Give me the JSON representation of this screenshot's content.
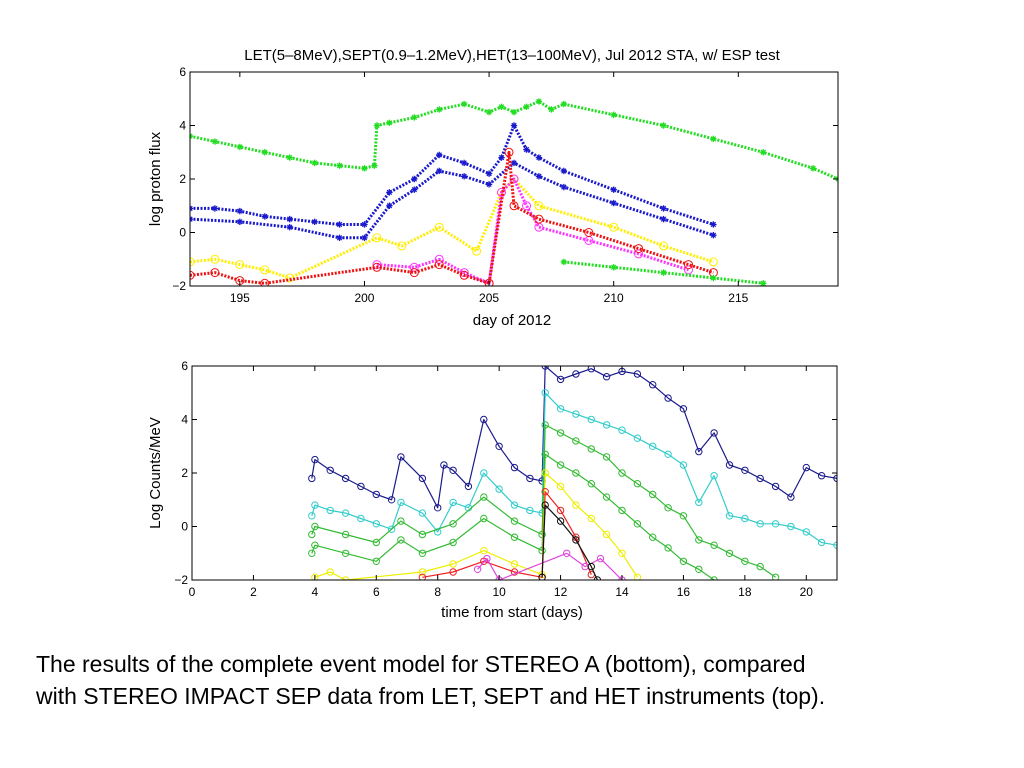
{
  "caption": {
    "line1": "The results of the complete event model for STEREO A (bottom), compared",
    "line2": "with STEREO IMPACT SEP data from LET, SEPT and HET instruments (top)."
  },
  "chart_data": [
    {
      "type": "scatter",
      "title": "LET(5–8MeV),SEPT(0.9–1.2MeV),HET(13–100MeV), Jul 2012 STA, w/ ESP test",
      "xlabel": "day of 2012",
      "ylabel": "log proton flux",
      "xlim": [
        193,
        219
      ],
      "ylim": [
        -2,
        6
      ],
      "xticks": [
        195,
        200,
        205,
        210,
        215
      ],
      "xtick_labels": [
        "195",
        "200",
        "205",
        "210",
        "215"
      ],
      "yticks": [
        -2,
        0,
        2,
        4,
        6
      ],
      "ytick_labels": [
        "−2",
        "0",
        "2",
        "4",
        "6"
      ],
      "grid": false,
      "series": [
        {
          "color": "#22dd22",
          "marker": "star",
          "x": [
            193.0,
            194.0,
            195.0,
            196.0,
            197.0,
            198.0,
            199.0,
            200.0,
            200.4,
            200.5,
            201.0,
            202.0,
            203.0,
            204.0,
            205.0,
            205.5,
            206.0,
            206.5,
            207.0,
            207.5,
            208.0,
            210.0,
            212.0,
            214.0,
            216.0,
            218.0,
            219.0
          ],
          "y": [
            3.6,
            3.4,
            3.2,
            3.0,
            2.8,
            2.6,
            2.5,
            2.4,
            2.5,
            4.0,
            4.1,
            4.3,
            4.6,
            4.8,
            4.5,
            4.7,
            4.5,
            4.7,
            4.9,
            4.6,
            4.8,
            4.4,
            4.0,
            3.5,
            3.0,
            2.4,
            2.0
          ]
        },
        {
          "color": "#1a1acc",
          "marker": "star",
          "x": [
            193.0,
            194.0,
            195.0,
            196.0,
            197.0,
            198.0,
            199.0,
            200.0,
            201.0,
            202.0,
            203.0,
            204.0,
            205.0,
            205.5,
            206.0,
            206.5,
            207.0,
            208.0,
            210.0,
            212.0,
            214.0
          ],
          "y": [
            0.9,
            0.9,
            0.8,
            0.6,
            0.5,
            0.4,
            0.3,
            0.3,
            1.5,
            2.0,
            2.9,
            2.6,
            2.2,
            2.8,
            4.0,
            3.1,
            2.8,
            2.3,
            1.6,
            0.9,
            0.3
          ]
        },
        {
          "color": "#1a1acc",
          "marker": "star",
          "x": [
            193.0,
            195.0,
            197.0,
            199.0,
            200.0,
            201.0,
            202.0,
            203.0,
            204.0,
            205.0,
            206.0,
            207.0,
            208.0,
            210.0,
            212.0,
            214.0
          ],
          "y": [
            0.5,
            0.4,
            0.2,
            -0.2,
            -0.2,
            1.0,
            1.6,
            2.3,
            2.1,
            1.8,
            2.6,
            2.1,
            1.7,
            1.1,
            0.5,
            -0.1
          ]
        },
        {
          "color": "#ffee00",
          "marker": "circle",
          "x": [
            193.0,
            194.0,
            195.0,
            196.0,
            197.0,
            200.5,
            201.5,
            203.0,
            204.5,
            205.5,
            206.0,
            207.0,
            210.0,
            212.0,
            214.0
          ],
          "y": [
            -1.1,
            -1.0,
            -1.2,
            -1.4,
            -1.7,
            -0.2,
            -0.5,
            0.2,
            -0.7,
            1.5,
            2.0,
            1.0,
            0.2,
            -0.5,
            -1.1
          ]
        },
        {
          "color": "#ff33ff",
          "marker": "circle",
          "x": [
            200.5,
            202.0,
            203.0,
            204.0,
            205.0,
            205.5,
            206.0,
            206.5,
            207.0,
            209.0,
            211.0,
            213.0
          ],
          "y": [
            -1.2,
            -1.3,
            -1.0,
            -1.5,
            -1.9,
            1.5,
            2.0,
            1.0,
            0.2,
            -0.3,
            -0.8,
            -1.4
          ]
        },
        {
          "color": "#ee1111",
          "marker": "circle",
          "x": [
            193.0,
            194.0,
            195.0,
            196.0,
            200.5,
            202.0,
            203.0,
            204.0,
            205.0,
            205.8,
            206.0,
            207.0,
            209.0,
            211.0,
            213.0,
            214.0
          ],
          "y": [
            -1.6,
            -1.5,
            -1.8,
            -1.9,
            -1.3,
            -1.5,
            -1.2,
            -1.6,
            -1.9,
            3.0,
            1.0,
            0.5,
            0.0,
            -0.6,
            -1.2,
            -1.5
          ]
        },
        {
          "color": "#22dd22",
          "marker": "star",
          "x": [
            208.0,
            210.0,
            212.0,
            214.0,
            216.0
          ],
          "y": [
            -1.1,
            -1.3,
            -1.5,
            -1.7,
            -1.9
          ]
        }
      ]
    },
    {
      "type": "line",
      "title": "",
      "xlabel": "time from start (days)",
      "ylabel": "Log Counts/MeV",
      "xlim": [
        0,
        21
      ],
      "ylim": [
        -2,
        6
      ],
      "xticks": [
        0,
        2,
        4,
        6,
        8,
        10,
        12,
        14,
        16,
        18,
        20
      ],
      "xtick_labels": [
        "0",
        "2",
        "4",
        "6",
        "8",
        "10",
        "12",
        "14",
        "16",
        "18",
        "20"
      ],
      "yticks": [
        -2,
        0,
        2,
        4,
        6
      ],
      "ytick_labels": [
        "−2",
        "0",
        "2",
        "4",
        "6"
      ],
      "grid": false,
      "series": [
        {
          "color": "#1a1a8c",
          "x": [
            3.9,
            4.0,
            4.5,
            5.0,
            5.5,
            6.0,
            6.5,
            6.8,
            7.5,
            8.0,
            8.2,
            8.5,
            9.0,
            9.5,
            10.0,
            10.5,
            11.0,
            11.4,
            11.5,
            12.0,
            12.5,
            13.0,
            13.5,
            14.0,
            14.5,
            15.0,
            15.5,
            16.0,
            16.5,
            17.0,
            17.5,
            18.0,
            18.5,
            19.0,
            19.5,
            20.0,
            20.5,
            21.0
          ],
          "y": [
            1.8,
            2.5,
            2.1,
            1.8,
            1.5,
            1.2,
            1.0,
            2.6,
            1.8,
            0.7,
            2.3,
            2.1,
            1.5,
            4.0,
            3.0,
            2.2,
            1.8,
            1.7,
            6.0,
            5.5,
            5.7,
            5.9,
            5.6,
            5.8,
            5.7,
            5.3,
            4.8,
            4.4,
            2.8,
            3.5,
            2.3,
            2.1,
            1.8,
            1.5,
            1.1,
            2.2,
            1.9,
            1.8
          ]
        },
        {
          "color": "#33cccc",
          "x": [
            3.9,
            4.0,
            4.5,
            5.0,
            5.5,
            6.0,
            6.5,
            6.8,
            7.5,
            8.0,
            8.5,
            9.0,
            9.5,
            10.0,
            10.5,
            11.0,
            11.4,
            11.5,
            12.0,
            12.5,
            13.0,
            13.5,
            14.0,
            14.5,
            15.0,
            15.5,
            16.0,
            16.5,
            17.0,
            17.5,
            18.0,
            18.5,
            19.0,
            19.5,
            20.0,
            20.5,
            21.0
          ],
          "y": [
            0.4,
            0.8,
            0.6,
            0.5,
            0.3,
            0.1,
            -0.1,
            0.9,
            0.5,
            -0.2,
            0.9,
            0.7,
            2.0,
            1.4,
            0.8,
            0.6,
            0.5,
            5.0,
            4.4,
            4.2,
            4.0,
            3.8,
            3.6,
            3.3,
            3.0,
            2.7,
            2.3,
            0.9,
            1.9,
            0.4,
            0.3,
            0.1,
            0.1,
            0.0,
            -0.2,
            -0.6,
            -0.7
          ]
        },
        {
          "color": "#33bb33",
          "x": [
            3.9,
            4.0,
            5.0,
            6.0,
            6.8,
            7.5,
            8.5,
            9.5,
            10.5,
            11.4,
            11.5,
            12.0,
            12.5,
            13.0,
            13.5,
            14.0,
            14.5,
            15.0,
            15.5,
            16.0,
            16.5,
            17.0,
            17.5,
            18.0,
            18.5,
            19.0
          ],
          "y": [
            -0.3,
            0.0,
            -0.3,
            -0.6,
            0.2,
            -0.3,
            0.1,
            1.1,
            0.2,
            -0.3,
            3.8,
            3.5,
            3.2,
            2.9,
            2.6,
            2.0,
            1.6,
            1.2,
            0.7,
            0.4,
            -0.5,
            -0.7,
            -1.0,
            -1.3,
            -1.5,
            -1.9
          ]
        },
        {
          "color": "#33bb33",
          "x": [
            3.9,
            4.0,
            5.0,
            6.0,
            6.8,
            7.5,
            8.5,
            9.5,
            10.5,
            11.4,
            11.5,
            12.0,
            12.5,
            13.0,
            13.5,
            14.0,
            14.5,
            15.0,
            15.5,
            16.0,
            16.5,
            17.0
          ],
          "y": [
            -1.0,
            -0.7,
            -1.0,
            -1.3,
            -0.5,
            -1.0,
            -0.6,
            0.3,
            -0.4,
            -0.9,
            2.7,
            2.3,
            2.0,
            1.6,
            1.1,
            0.6,
            0.1,
            -0.4,
            -0.8,
            -1.3,
            -1.6,
            -2.0
          ]
        },
        {
          "color": "#eeee00",
          "x": [
            4.0,
            4.5,
            5.0,
            7.5,
            8.5,
            9.5,
            10.5,
            11.4,
            11.5,
            12.0,
            12.5,
            13.0,
            13.5,
            14.0,
            14.5
          ],
          "y": [
            -1.9,
            -1.7,
            -2.0,
            -1.7,
            -1.4,
            -0.9,
            -1.4,
            -1.8,
            2.0,
            1.5,
            0.8,
            0.3,
            -0.3,
            -1.0,
            -1.9
          ]
        },
        {
          "color": "#ee2222",
          "x": [
            7.5,
            8.5,
            9.5,
            10.5,
            11.4,
            11.5,
            12.0,
            12.5,
            13.0
          ],
          "y": [
            -1.9,
            -1.7,
            -1.3,
            -1.7,
            -1.9,
            1.3,
            0.6,
            -0.4,
            -1.8
          ]
        },
        {
          "color": "#dd44dd",
          "x": [
            9.3,
            9.6,
            10.0,
            12.2,
            12.8,
            13.3,
            14.0
          ],
          "y": [
            -1.6,
            -1.2,
            -2.0,
            -1.0,
            -1.5,
            -1.2,
            -2.0
          ]
        },
        {
          "color": "#111111",
          "x": [
            11.4,
            11.5,
            12.0,
            12.5,
            13.0,
            13.2
          ],
          "y": [
            -1.9,
            0.8,
            0.2,
            -0.5,
            -1.5,
            -2.0
          ]
        }
      ]
    }
  ]
}
